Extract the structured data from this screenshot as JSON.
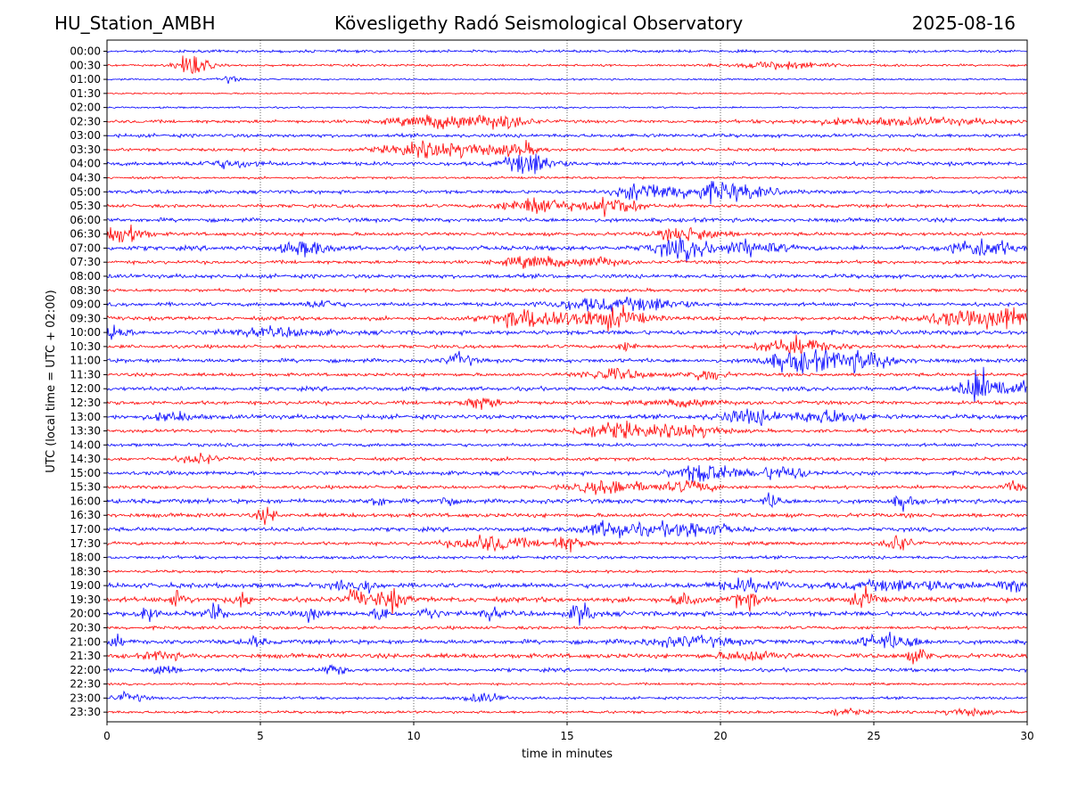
{
  "header": {
    "station": "HU_Station_AMBH",
    "title": "Kövesligethy Radó Seismological Observatory",
    "date": "2025-08-16"
  },
  "chart_data": {
    "type": "line",
    "title": "Kövesligethy Radó Seismological Observatory",
    "xlabel": "time in minutes",
    "ylabel": "UTC (local time = UTC + 02:00)",
    "xlim": [
      0,
      30
    ],
    "xticks": [
      "0",
      "5",
      "10",
      "15",
      "20",
      "25",
      "30"
    ],
    "grid": "vertical dotted lines at x ticks",
    "colors": [
      "#0000ff",
      "#ff0000"
    ],
    "rows": [
      "00:00",
      "00:30",
      "01:00",
      "01:30",
      "02:00",
      "02:30",
      "03:00",
      "03:30",
      "04:00",
      "04:30",
      "05:00",
      "05:30",
      "06:00",
      "06:30",
      "07:00",
      "07:30",
      "08:00",
      "08:30",
      "09:00",
      "09:30",
      "10:00",
      "10:30",
      "11:00",
      "11:30",
      "12:00",
      "12:30",
      "13:00",
      "13:30",
      "14:00",
      "14:30",
      "15:00",
      "15:30",
      "16:00",
      "16:30",
      "17:00",
      "17:30",
      "18:00",
      "18:30",
      "19:00",
      "19:30",
      "20:00",
      "20:30",
      "21:00",
      "21:30",
      "22:00",
      "22:30",
      "23:00",
      "23:30"
    ],
    "base_amplitude": [
      1.2,
      1.0,
      0.8,
      0.7,
      0.8,
      1.4,
      1.6,
      1.3,
      1.7,
      1.0,
      1.6,
      1.5,
      1.8,
      1.6,
      2.0,
      1.5,
      1.8,
      1.4,
      1.7,
      1.7,
      2.0,
      1.5,
      1.8,
      1.5,
      1.8,
      1.7,
      2.0,
      1.5,
      1.5,
      1.5,
      1.8,
      1.5,
      2.0,
      1.8,
      1.8,
      1.5,
      1.4,
      1.2,
      2.2,
      2.2,
      2.2,
      1.4,
      2.0,
      2.0,
      1.6,
      1.0,
      1.2,
      1.2
    ],
    "events": {
      "00:30": [
        [
          2.8,
          10,
          0.5
        ],
        [
          22,
          3,
          1.5
        ]
      ],
      "01:00": [
        [
          4,
          3,
          0.3
        ]
      ],
      "02:30": [
        [
          11,
          6,
          1.5
        ],
        [
          13,
          5,
          0.8
        ],
        [
          26,
          3,
          3
        ]
      ],
      "03:30": [
        [
          11,
          7,
          1.8
        ],
        [
          13.5,
          5,
          0.6
        ]
      ],
      "04:00": [
        [
          13.8,
          10,
          0.8
        ],
        [
          4,
          3,
          1
        ]
      ],
      "05:00": [
        [
          17.5,
          8,
          0.8
        ],
        [
          20,
          8,
          1.5
        ]
      ],
      "05:30": [
        [
          14,
          8,
          1
        ],
        [
          16.5,
          8,
          0.8
        ]
      ],
      "06:30": [
        [
          0.6,
          9,
          0.6
        ],
        [
          19,
          6,
          1
        ]
      ],
      "07:00": [
        [
          6.5,
          6,
          0.8
        ],
        [
          18.8,
          8,
          1
        ],
        [
          21,
          6,
          1
        ],
        [
          28.5,
          8,
          1
        ]
      ],
      "07:30": [
        [
          14,
          5,
          1
        ],
        [
          16,
          4,
          0.8
        ]
      ],
      "09:00": [
        [
          7,
          4,
          0.5
        ],
        [
          16,
          5,
          1.5
        ],
        [
          18,
          4,
          1
        ]
      ],
      "09:30": [
        [
          14,
          9,
          1.3
        ],
        [
          16.5,
          9,
          1
        ],
        [
          27.5,
          6,
          1
        ],
        [
          29.3,
          10,
          0.8
        ]
      ],
      "10:00": [
        [
          0.2,
          7,
          0.4
        ],
        [
          5.5,
          3,
          1.5
        ]
      ],
      "10:30": [
        [
          22.5,
          7,
          1.2
        ],
        [
          17,
          4,
          0.3
        ]
      ],
      "11:00": [
        [
          11.5,
          6,
          0.4
        ],
        [
          22.5,
          9,
          1
        ],
        [
          24.5,
          8,
          1.2
        ]
      ],
      "11:30": [
        [
          16.5,
          5,
          1
        ],
        [
          19.5,
          5,
          0.6
        ]
      ],
      "12:00": [
        [
          28.4,
          15,
          0.6
        ],
        [
          29.5,
          6,
          0.8
        ]
      ],
      "12:30": [
        [
          12.2,
          6,
          0.5
        ],
        [
          19,
          3,
          1
        ]
      ],
      "13:00": [
        [
          2.2,
          4,
          0.6
        ],
        [
          21,
          6,
          1
        ],
        [
          23.5,
          6,
          1
        ]
      ],
      "13:30": [
        [
          16.5,
          7,
          1.2
        ],
        [
          19,
          6,
          1
        ]
      ],
      "14:30": [
        [
          3,
          4,
          0.6
        ]
      ],
      "15:00": [
        [
          19.5,
          8,
          1
        ],
        [
          22,
          6,
          0.8
        ]
      ],
      "15:30": [
        [
          16.5,
          6,
          1.2
        ],
        [
          19,
          5,
          0.8
        ],
        [
          29.5,
          5,
          0.3
        ]
      ],
      "16:00": [
        [
          8.8,
          5,
          0.25
        ],
        [
          11,
          5,
          0.25
        ],
        [
          21.7,
          6,
          0.3
        ],
        [
          26,
          6,
          0.35
        ]
      ],
      "16:30": [
        [
          5.2,
          6,
          0.3
        ]
      ],
      "17:00": [
        [
          16.5,
          7,
          1
        ],
        [
          19,
          7,
          1.2
        ]
      ],
      "17:30": [
        [
          12.5,
          7,
          1.2
        ],
        [
          15,
          6,
          0.6
        ],
        [
          25.8,
          8,
          0.4
        ]
      ],
      "19:00": [
        [
          7.5,
          4,
          0.25
        ],
        [
          8.5,
          5,
          0.3
        ],
        [
          21,
          5,
          1
        ],
        [
          26,
          4,
          2
        ],
        [
          29.5,
          7,
          0.4
        ]
      ],
      "19:30": [
        [
          2.3,
          6,
          0.3
        ],
        [
          4.4,
          6,
          0.3
        ],
        [
          8.1,
          8,
          0.3
        ],
        [
          9.2,
          9,
          0.5
        ],
        [
          18.8,
          6,
          0.4
        ],
        [
          20.8,
          7,
          0.5
        ],
        [
          24.7,
          8,
          0.4
        ]
      ],
      "20:00": [
        [
          1.3,
          8,
          0.3
        ],
        [
          3.5,
          7,
          0.3
        ],
        [
          6.7,
          6,
          0.3
        ],
        [
          9,
          6,
          0.3
        ],
        [
          10.5,
          6,
          0.3
        ],
        [
          12.5,
          5,
          0.3
        ],
        [
          15.5,
          10,
          0.35
        ]
      ],
      "21:00": [
        [
          0.3,
          4,
          0.3
        ],
        [
          4.8,
          4,
          0.3
        ],
        [
          19,
          4,
          1.5
        ],
        [
          25.5,
          6,
          1
        ]
      ],
      "21:30": [
        [
          1.8,
          4,
          0.5
        ],
        [
          26.5,
          6,
          0.4
        ],
        [
          21,
          4,
          1
        ]
      ],
      "22:00": [
        [
          1.8,
          5,
          0.4
        ],
        [
          7.4,
          5,
          0.35
        ]
      ],
      "23:00": [
        [
          0.7,
          4,
          0.5
        ],
        [
          12.3,
          4,
          0.6
        ]
      ],
      "23:30": [
        [
          24,
          3,
          0.6
        ],
        [
          28,
          3,
          0.8
        ]
      ]
    }
  }
}
